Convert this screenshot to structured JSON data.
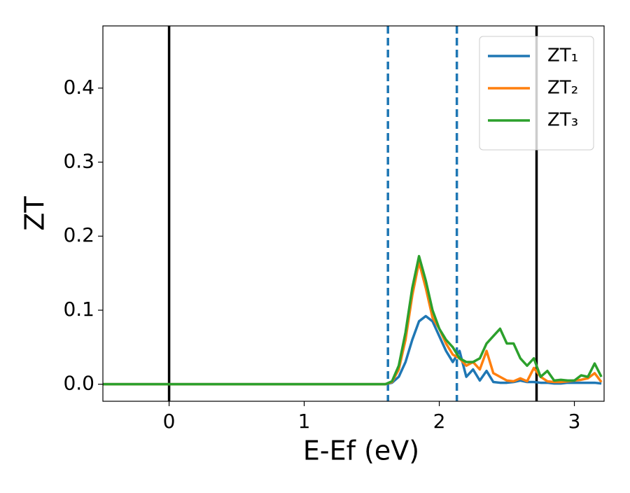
{
  "chart_data": {
    "type": "line",
    "xlabel": "E-Ef (eV)",
    "ylabel": "ZT",
    "x": [
      -0.49,
      1.6,
      1.65,
      1.7,
      1.75,
      1.8,
      1.85,
      1.9,
      1.95,
      2.0,
      2.05,
      2.1,
      2.15,
      2.2,
      2.25,
      2.3,
      2.35,
      2.4,
      2.45,
      2.5,
      2.55,
      2.6,
      2.65,
      2.7,
      2.75,
      2.8,
      2.85,
      2.9,
      2.95,
      3.0,
      3.05,
      3.1,
      3.15,
      3.2
    ],
    "series": [
      {
        "name": "ZT₁",
        "color": "#1f77b4",
        "values": [
          0,
          0,
          0.002,
          0.01,
          0.03,
          0.06,
          0.085,
          0.092,
          0.085,
          0.065,
          0.045,
          0.03,
          0.045,
          0.01,
          0.02,
          0.005,
          0.018,
          0.003,
          0.002,
          0.002,
          0.003,
          0.005,
          0.003,
          0.003,
          0.002,
          0.002,
          0.001,
          0.001,
          0.002,
          0.002,
          0.002,
          0.002,
          0.002,
          0.001
        ]
      },
      {
        "name": "ZT₂",
        "color": "#ff7f0e",
        "values": [
          0,
          0,
          0.003,
          0.02,
          0.06,
          0.12,
          0.165,
          0.13,
          0.09,
          0.075,
          0.055,
          0.04,
          0.035,
          0.025,
          0.03,
          0.02,
          0.045,
          0.015,
          0.01,
          0.005,
          0.004,
          0.008,
          0.004,
          0.022,
          0.01,
          0.004,
          0.003,
          0.003,
          0.004,
          0.005,
          0.006,
          0.008,
          0.015,
          0.003
        ]
      },
      {
        "name": "ZT₃",
        "color": "#2ca02c",
        "values": [
          0,
          0,
          0.004,
          0.025,
          0.07,
          0.13,
          0.173,
          0.14,
          0.1,
          0.075,
          0.06,
          0.05,
          0.035,
          0.03,
          0.03,
          0.035,
          0.055,
          0.065,
          0.075,
          0.055,
          0.055,
          0.035,
          0.025,
          0.035,
          0.01,
          0.018,
          0.005,
          0.006,
          0.005,
          0.005,
          0.012,
          0.01,
          0.028,
          0.01
        ]
      }
    ],
    "vlines": [
      {
        "x": 0,
        "color": "#000000",
        "style": "solid"
      },
      {
        "x": 1.62,
        "color": "#1f77b4",
        "style": "dashed"
      },
      {
        "x": 2.13,
        "color": "#1f77b4",
        "style": "dashed"
      },
      {
        "x": 2.72,
        "color": "#000000",
        "style": "solid"
      }
    ],
    "xlim": [
      -0.49,
      3.22
    ],
    "ylim": [
      -0.023,
      0.484
    ],
    "xticks": [
      0,
      1,
      2,
      3
    ],
    "yticks": [
      {
        "value": 0,
        "label": "0.0"
      },
      {
        "value": 0.1,
        "label": "0.1"
      },
      {
        "value": 0.2,
        "label": "0.2"
      },
      {
        "value": 0.3,
        "label": "0.3"
      },
      {
        "value": 0.4,
        "label": "0.4"
      }
    ],
    "legend": "upper right",
    "grid": false
  }
}
